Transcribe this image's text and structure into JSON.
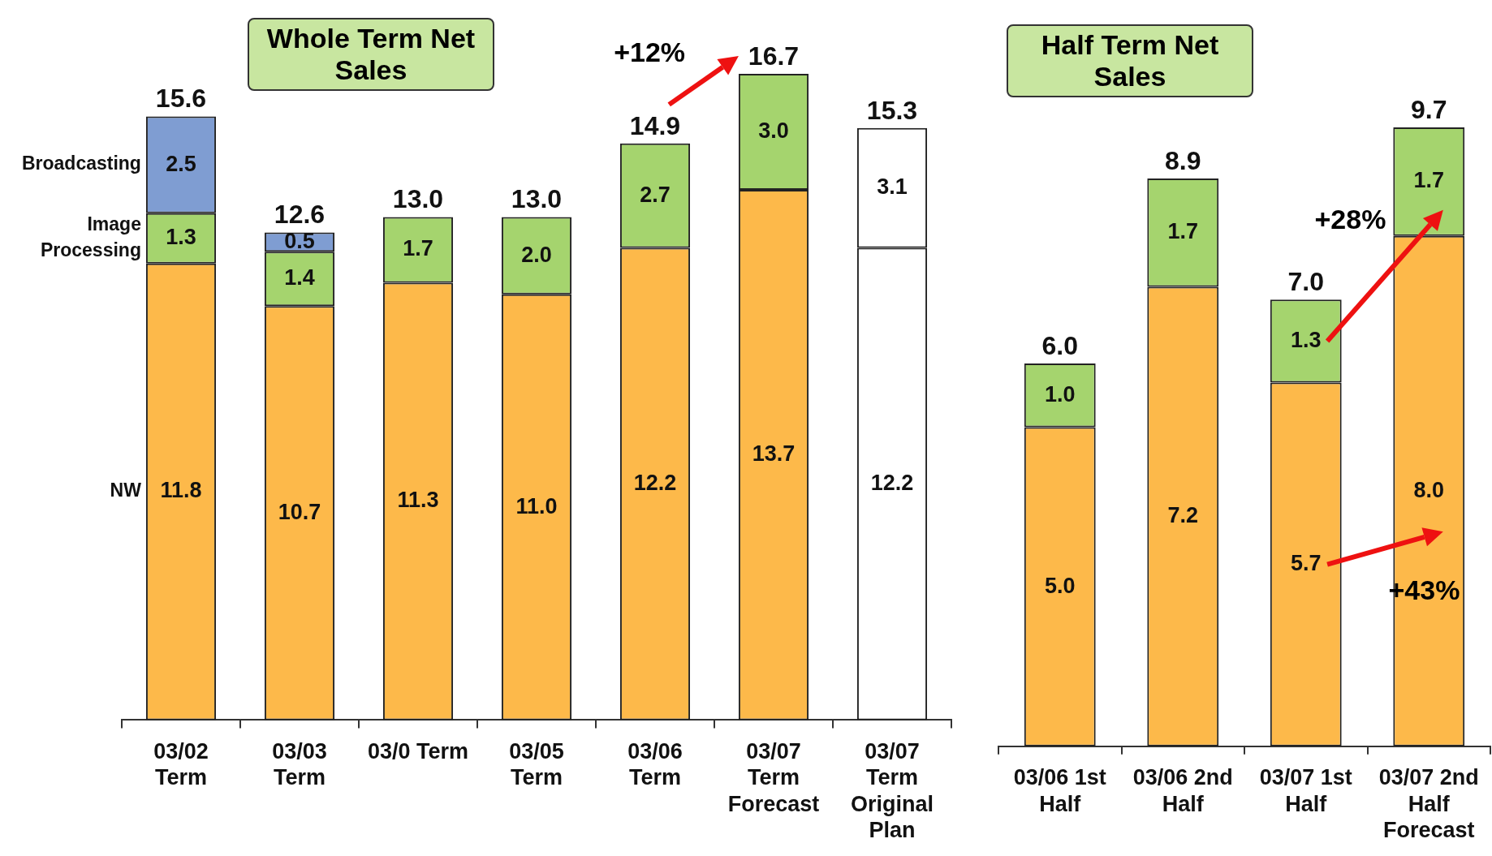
{
  "chart_data": [
    {
      "type": "bar",
      "title": "Whole Term Net Sales",
      "stacked": true,
      "categories": [
        "03/02 Term",
        "03/03 Term",
        "03/0 Term",
        "03/05 Term",
        "03/06 Term",
        "03/07 Term Forecast",
        "03/07 Term Original Plan"
      ],
      "series": [
        {
          "name": "NW",
          "colors": [
            "#fdb94a",
            "#fdb94a",
            "#fdb94a",
            "#fdb94a",
            "#fdb94a",
            "#fdb94a",
            "#ffffff"
          ],
          "values": [
            11.8,
            10.7,
            11.3,
            11.0,
            12.2,
            13.7,
            12.2
          ],
          "value_labels": [
            "11.8",
            "10.7",
            "11.3",
            "11.0",
            "12.2",
            "13.7",
            "12.2"
          ]
        },
        {
          "name": "Image Processing",
          "colors": [
            "#a5d46e",
            "#a5d46e",
            "#a5d46e",
            "#a5d46e",
            "#a5d46e",
            "#a5d46e",
            "#ffffff"
          ],
          "values": [
            1.3,
            1.4,
            1.7,
            2.0,
            2.7,
            3.0,
            3.1
          ],
          "value_labels": [
            "1.3",
            "1.4",
            "1.7",
            "2.0",
            "2.7",
            "3.0",
            "3.1"
          ]
        },
        {
          "name": "Broadcasting",
          "colors": [
            "#7f9dd2",
            "#7f9dd2",
            null,
            null,
            null,
            null,
            null
          ],
          "values": [
            2.5,
            0.5,
            null,
            null,
            null,
            null,
            null
          ],
          "value_labels": [
            "2.5",
            "0.5",
            null,
            null,
            null,
            null,
            null
          ]
        }
      ],
      "totals": [
        "15.6",
        "12.6",
        "13.0",
        "13.0",
        "14.9",
        "16.7",
        "15.3"
      ],
      "annotations": [
        "+12%"
      ]
    },
    {
      "type": "bar",
      "title": "Half Term Net Sales",
      "stacked": true,
      "categories": [
        "03/06 1st Half",
        "03/06 2nd Half",
        "03/07 1st Half",
        "03/07 2nd Half Forecast"
      ],
      "series": [
        {
          "color": "#fdb94a",
          "values": [
            5.0,
            7.2,
            5.7,
            8.0
          ],
          "value_labels": [
            "5.0",
            "7.2",
            "5.7",
            "8.0"
          ]
        },
        {
          "color": "#a5d46e",
          "values": [
            1.0,
            1.7,
            1.3,
            1.7
          ],
          "value_labels": [
            "1.0",
            "1.7",
            "1.3",
            "1.7"
          ]
        }
      ],
      "totals": [
        "6.0",
        "8.9",
        "7.0",
        "9.7"
      ],
      "annotations": [
        "+28%",
        "+43%"
      ]
    }
  ]
}
